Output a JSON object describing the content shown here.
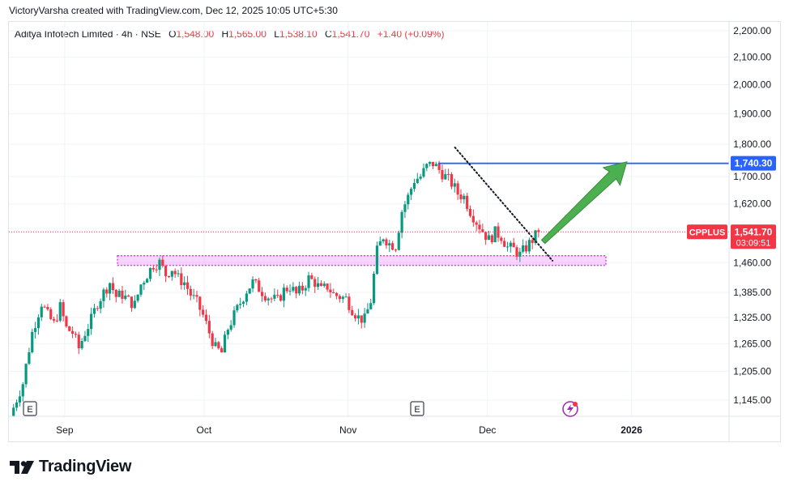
{
  "header": {
    "attribution": "VictoryVarsha created with TradingView.com, Dec 12, 2025 10:05 UTC+5:30"
  },
  "legend": {
    "symbol": "Aditya Infotech Limited · 4h · NSE",
    "open_label": "O",
    "open": "1,548.00",
    "high_label": "H",
    "high": "1,565.00",
    "low_label": "L",
    "low": "1,538.10",
    "close_label": "C",
    "close": "1,541.70",
    "change": "+1.40 (+0.09%)"
  },
  "price_tag": {
    "ticker": "CPPLUS",
    "price": "1,541.70",
    "countdown": "03:09:51"
  },
  "level_tag": "1,740.30",
  "events": [
    "E",
    "E"
  ],
  "brand": {
    "name": "TradingView"
  },
  "colors": {
    "up": "#089981",
    "down": "#f23645",
    "resistance": "#2962ff",
    "support_zone": "#e040fb",
    "arrow": "#4caf50"
  },
  "chart_data": {
    "type": "candlestick",
    "timeframe": "4h",
    "ylim": [
      1120,
      2230
    ],
    "yscale": "log",
    "y_ticks": [
      "2,200.00",
      "2,100.00",
      "2,000.00",
      "1,900.00",
      "1,800.00",
      "1,700.00",
      "1,620.00",
      "1,540.00",
      "1,460.00",
      "1,385.00",
      "1,325.00",
      "1,265.00",
      "1,205.00",
      "1,145.00"
    ],
    "x_ticks": [
      "Sep",
      "Oct",
      "Nov",
      "Dec",
      "2026"
    ],
    "x_tick_dates": [
      "2025-09-01",
      "2025-10-01",
      "2025-11-01",
      "2025-12-01",
      "2026-01-01"
    ],
    "xlim": [
      "2025-08-20",
      "2026-01-22"
    ],
    "candle_dates": [
      "2025-08-21",
      "2025-12-12"
    ],
    "close_path": [
      [
        0,
        1130
      ],
      [
        3,
        1180
      ],
      [
        6,
        1290
      ],
      [
        9,
        1360
      ],
      [
        11,
        1330
      ],
      [
        13,
        1310
      ],
      [
        15,
        1350
      ],
      [
        17,
        1300
      ],
      [
        19,
        1290
      ],
      [
        21,
        1255
      ],
      [
        23,
        1290
      ],
      [
        25,
        1320
      ],
      [
        27,
        1360
      ],
      [
        29,
        1385
      ],
      [
        31,
        1410
      ],
      [
        33,
        1375
      ],
      [
        35,
        1380
      ],
      [
        37,
        1365
      ],
      [
        39,
        1355
      ],
      [
        41,
        1405
      ],
      [
        43,
        1430
      ],
      [
        45,
        1455
      ],
      [
        47,
        1460
      ],
      [
        49,
        1430
      ],
      [
        51,
        1445
      ],
      [
        53,
        1420
      ],
      [
        55,
        1410
      ],
      [
        57,
        1380
      ],
      [
        59,
        1360
      ],
      [
        61,
        1330
      ],
      [
        63,
        1290
      ],
      [
        65,
        1255
      ],
      [
        67,
        1245
      ],
      [
        69,
        1300
      ],
      [
        71,
        1330
      ],
      [
        73,
        1360
      ],
      [
        75,
        1390
      ],
      [
        77,
        1410
      ],
      [
        79,
        1395
      ],
      [
        81,
        1380
      ],
      [
        83,
        1370
      ],
      [
        85,
        1365
      ],
      [
        87,
        1390
      ],
      [
        89,
        1400
      ],
      [
        91,
        1380
      ],
      [
        93,
        1395
      ],
      [
        95,
        1420
      ],
      [
        97,
        1410
      ],
      [
        99,
        1390
      ],
      [
        101,
        1400
      ],
      [
        103,
        1380
      ],
      [
        105,
        1375
      ],
      [
        107,
        1370
      ],
      [
        109,
        1345
      ],
      [
        111,
        1325
      ],
      [
        113,
        1320
      ],
      [
        115,
        1365
      ],
      [
        117,
        1490
      ],
      [
        119,
        1530
      ],
      [
        121,
        1510
      ],
      [
        123,
        1505
      ],
      [
        125,
        1600
      ],
      [
        127,
        1640
      ],
      [
        129,
        1690
      ],
      [
        131,
        1700
      ],
      [
        133,
        1730
      ],
      [
        135,
        1740
      ],
      [
        137,
        1720
      ],
      [
        139,
        1700
      ],
      [
        141,
        1680
      ],
      [
        143,
        1650
      ],
      [
        145,
        1640
      ],
      [
        147,
        1600
      ],
      [
        149,
        1570
      ],
      [
        151,
        1545
      ],
      [
        153,
        1520
      ],
      [
        155,
        1540
      ],
      [
        157,
        1530
      ],
      [
        159,
        1500
      ],
      [
        161,
        1495
      ],
      [
        163,
        1480
      ],
      [
        165,
        1500
      ],
      [
        167,
        1520
      ],
      [
        169,
        1541.7
      ]
    ],
    "candle_count": 170,
    "resistance_level": 1740.3,
    "current_price": 1541.7,
    "support_zone": [
      1453,
      1478
    ],
    "trendline": [
      [
        "2025-11-24",
        1790
      ],
      [
        "2025-12-15",
        1465
      ]
    ],
    "projection_arrow": [
      [
        "2025-12-13",
        1515
      ],
      [
        "2025-12-31",
        1745
      ]
    ]
  }
}
